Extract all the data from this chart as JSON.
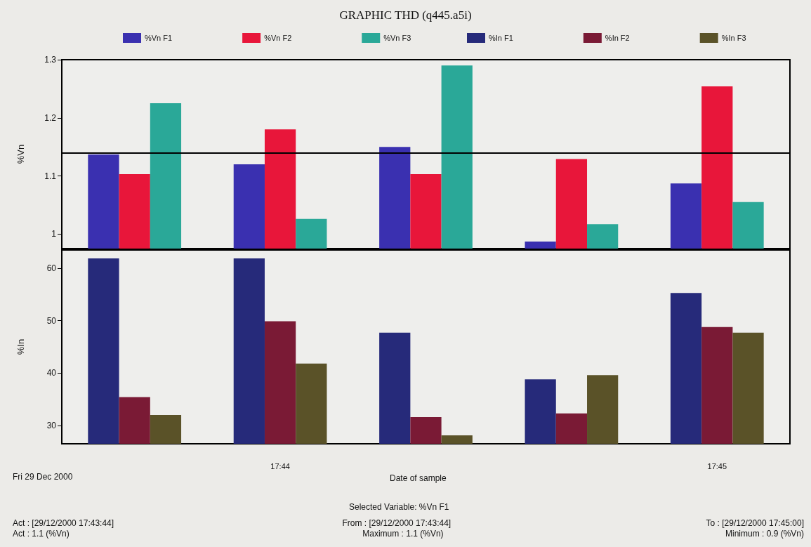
{
  "chart_data": [
    {
      "type": "bar",
      "title": "GRAPHIC THD (q445.a5i)",
      "ylabel": "%Vn",
      "categories": [
        null,
        null,
        null,
        null,
        null
      ],
      "tick_labels": "y",
      "legend": "top",
      "grid": false,
      "ylim": [
        0.975,
        1.3
      ],
      "yticks": [
        1.0,
        1.1,
        1.2,
        1.3
      ],
      "series": [
        {
          "name": "%Vn F1",
          "color": "#3a30b0",
          "values": [
            1.137,
            1.12,
            1.15,
            0.987,
            1.087
          ]
        },
        {
          "name": "%Vn F2",
          "color": "#e8163a",
          "values": [
            1.103,
            1.18,
            1.103,
            1.129,
            1.254
          ]
        },
        {
          "name": "%Vn F3",
          "color": "#2aa898",
          "values": [
            1.225,
            1.026,
            1.29,
            1.017,
            1.055
          ]
        }
      ],
      "ref_lines": [
        {
          "axis": "y",
          "value": 1.139
        }
      ]
    },
    {
      "type": "bar",
      "ylabel": "%In",
      "xlabel": "Date of sample",
      "categories": [
        null,
        "17:44",
        null,
        null,
        "17:45"
      ],
      "legend": "top",
      "grid": false,
      "ylim": [
        26.5,
        63.5
      ],
      "yticks": [
        30,
        40,
        50,
        60
      ],
      "series": [
        {
          "name": "%In F1",
          "color": "#262a7a",
          "values": [
            61.9,
            61.9,
            47.7,
            38.8,
            55.3
          ]
        },
        {
          "name": "%In F2",
          "color": "#7a1a35",
          "values": [
            35.4,
            49.9,
            31.6,
            32.3,
            48.8
          ]
        },
        {
          "name": "%In F3",
          "color": "#5a5228",
          "values": [
            32.0,
            41.8,
            28.1,
            39.6,
            47.7
          ]
        }
      ],
      "annotations": [
        "Fri 29 Dec 2000",
        "Selected Variable: %Vn F1",
        "Act : [29/12/2000 17:43:44]",
        "Act : 1.1 (%Vn)",
        "From : [29/12/2000 17:43:44]",
        "Maximum : 1.1 (%Vn)",
        "To : [29/12/2000 17:45:00]",
        "Minimum : 0.9 (%Vn)"
      ]
    }
  ]
}
